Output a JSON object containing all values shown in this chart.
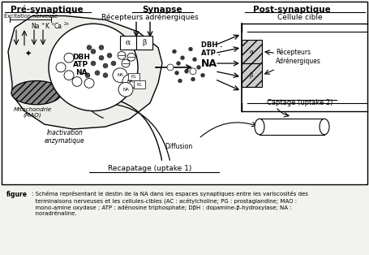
{
  "title_pre": "Pré-synaptique",
  "title_syn": "Synapse",
  "title_post": "Post-synaptique",
  "label_cellule": "Cellule cible",
  "label_recepteurs_top": "Récepteurs adrénergiques",
  "label_recepteurs_right": "Récepteurs\nAdrénergiques",
  "label_captage": "Captage (uptake 2)",
  "label_mito": "Mitochondrie\n(MAO)",
  "label_inact": "Inactivation\nenzymatique",
  "label_diffusion": "Diffusion",
  "label_recapatage": "Recapatage (uptake 1)",
  "label_excitation": "Excitation nerveuse",
  "label_ions": "Na+ K+  Ca2+",
  "label_alpha": "α",
  "label_beta": "β",
  "label_dbh_atp_na": "DBH\nATP\nNA",
  "label_dbh_dot": "DBH .",
  "label_atp_dot": "ATP .",
  "label_na_big": "NA",
  "legend_figure": "figure",
  "legend_body": ": Schéma représentant le destin de la NA dans les espaces synaptiques entre les variscosités des\n  terminaisons nerveuses et les cellules-cibles (AC : acétylcholine; PG : prostaglandine; MAO :\n  mono-amine oxydase ; ATP : adénosine triphosphate; DβH : dopamine-β-hydroxylase; NA :\n  noradrénaline.",
  "bg": "#f2f2ee"
}
